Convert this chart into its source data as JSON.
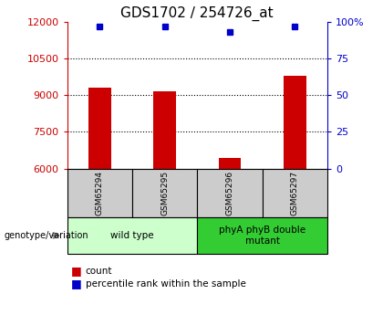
{
  "title": "GDS1702 / 254726_at",
  "samples": [
    "GSM65294",
    "GSM65295",
    "GSM65296",
    "GSM65297"
  ],
  "counts": [
    9300,
    9150,
    6450,
    9800
  ],
  "percentiles": [
    97,
    97,
    93,
    97
  ],
  "ylim_left": [
    6000,
    12000
  ],
  "ylim_right": [
    0,
    100
  ],
  "yticks_left": [
    6000,
    7500,
    9000,
    10500,
    12000
  ],
  "yticks_right": [
    0,
    25,
    50,
    75,
    100
  ],
  "yticklabels_right": [
    "0",
    "25",
    "50",
    "75",
    "100%"
  ],
  "bar_color": "#cc0000",
  "dot_color": "#0000cc",
  "bar_width": 0.35,
  "hgrid_at": [
    7500,
    9000,
    10500
  ],
  "groups": [
    {
      "label": "wild type",
      "indices": [
        0,
        1
      ]
    },
    {
      "label": "phyA phyB double\nmutant",
      "indices": [
        2,
        3
      ]
    }
  ],
  "group_colors": [
    "#ccffcc",
    "#33cc33"
  ],
  "sample_box_color": "#cccccc",
  "legend_count_label": "count",
  "legend_pct_label": "percentile rank within the sample",
  "genotype_label": "genotype/variation",
  "title_fontsize": 11,
  "tick_fontsize": 8,
  "sample_fontsize": 6.5,
  "group_fontsize": 7.5,
  "legend_fontsize": 7.5
}
